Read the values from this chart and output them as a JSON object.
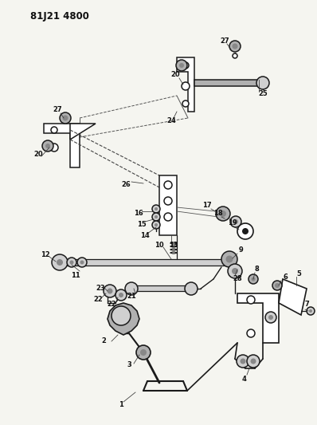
{
  "title": "81J21 4800",
  "bg_color": "#f5f5f0",
  "line_color": "#2a2a2a",
  "label_color": "#111111",
  "fig_width": 3.98,
  "fig_height": 5.33,
  "dpi": 100,
  "label_fontsize": 6.0,
  "title_fontsize": 8.5,
  "lw": 1.1,
  "parts_lc": "#1a1a1a",
  "shade1": "#b0b0b0",
  "shade2": "#888888",
  "shade3": "#d0d0d0"
}
